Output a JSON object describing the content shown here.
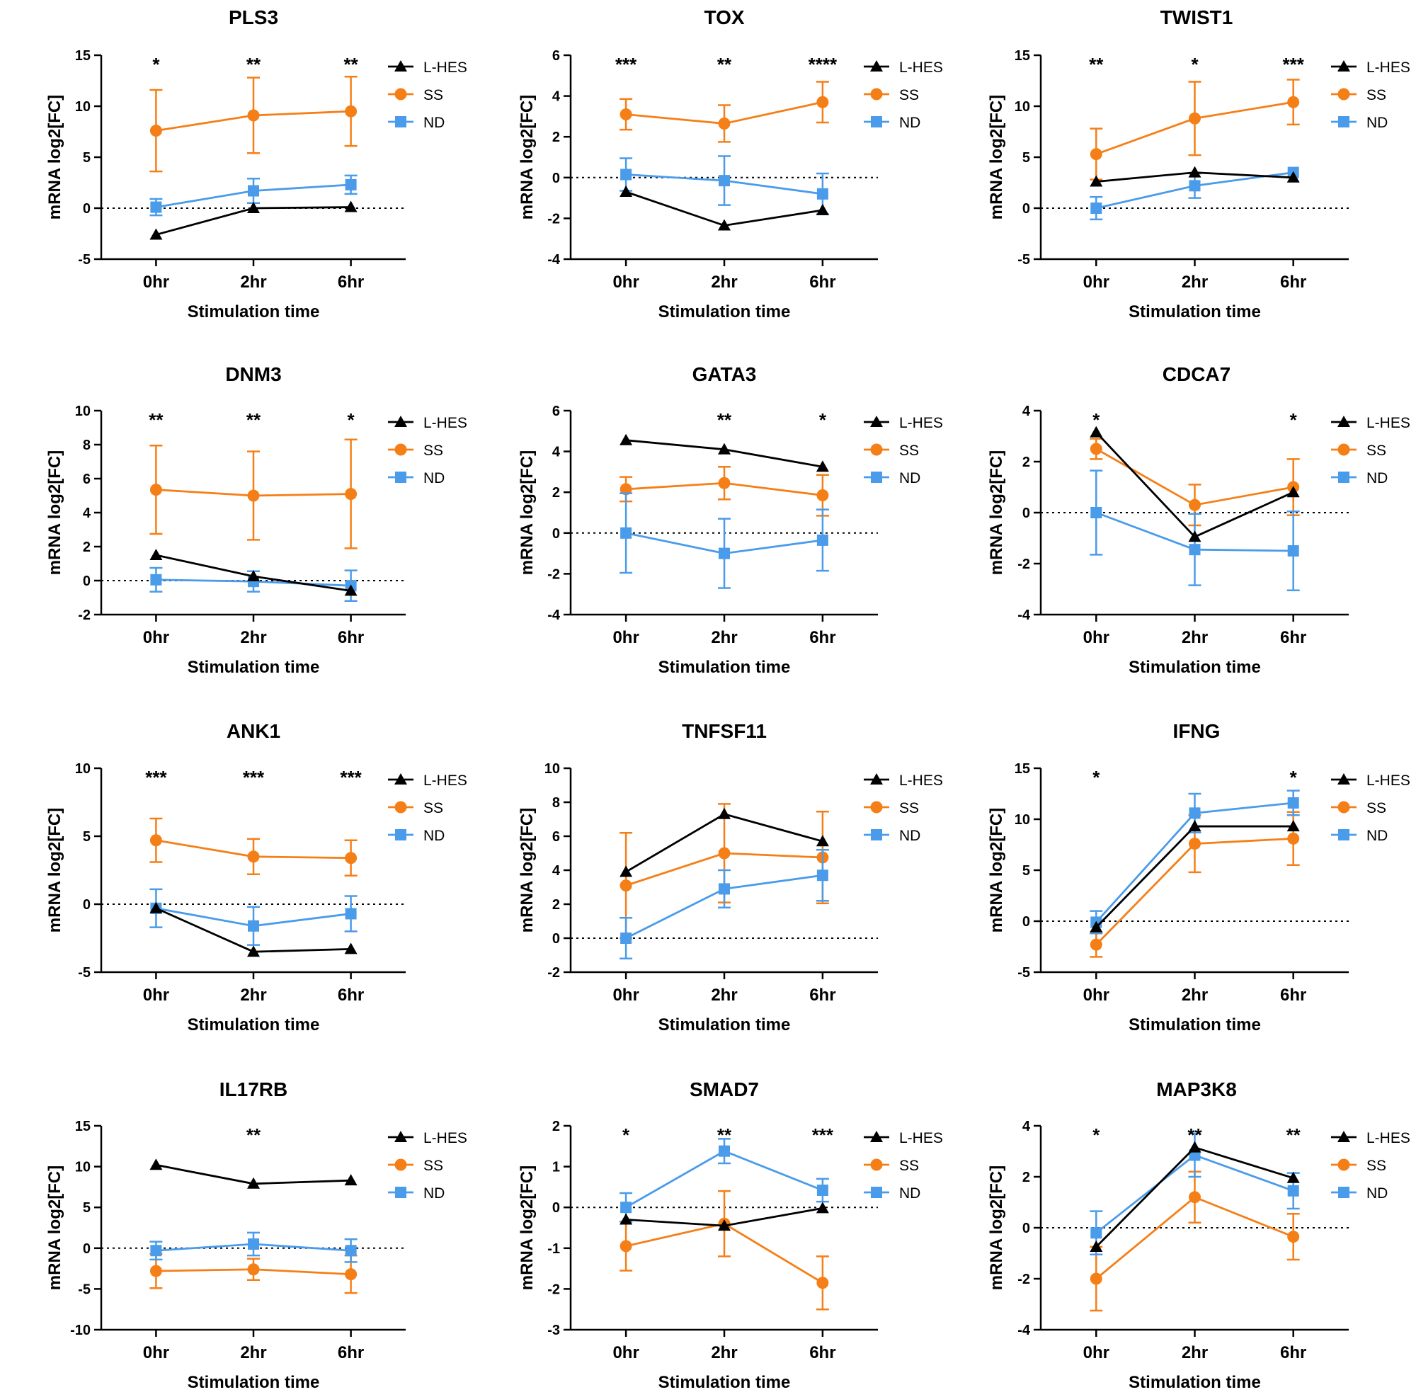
{
  "colors": {
    "L-HES": "#000000",
    "SS": "#F57F17",
    "ND": "#4A9BEA"
  },
  "chart_data": [
    {
      "type": "line",
      "title": "PLS3",
      "xlabel": "Stimulation time",
      "ylabel": "mRNA log2[FC]",
      "categories": [
        "0hr",
        "2hr",
        "6hr"
      ],
      "ylim": [
        -5,
        15
      ],
      "yticks": [
        -5,
        0,
        5,
        10,
        15
      ],
      "significance": [
        "*",
        "**",
        "**"
      ],
      "legend_position": "top-right",
      "series": [
        {
          "name": "L-HES",
          "marker": "triangle",
          "values": [
            -2.6,
            0.0,
            0.1
          ],
          "errors": [
            0,
            0,
            0
          ]
        },
        {
          "name": "SS",
          "marker": "circle",
          "values": [
            7.6,
            9.1,
            9.5
          ],
          "errors": [
            4.0,
            3.7,
            3.4
          ]
        },
        {
          "name": "ND",
          "marker": "square",
          "values": [
            0.1,
            1.7,
            2.3
          ],
          "errors": [
            0.8,
            1.2,
            0.9
          ]
        }
      ]
    },
    {
      "type": "line",
      "title": "TOX",
      "xlabel": "Stimulation time",
      "ylabel": "mRNA log2[FC]",
      "categories": [
        "0hr",
        "2hr",
        "6hr"
      ],
      "ylim": [
        -4,
        6
      ],
      "yticks": [
        -4,
        -2,
        0,
        2,
        4,
        6
      ],
      "significance": [
        "***",
        "**",
        "****"
      ],
      "legend_position": "top-right",
      "series": [
        {
          "name": "L-HES",
          "marker": "triangle",
          "values": [
            -0.7,
            -2.35,
            -1.6
          ],
          "errors": [
            0,
            0,
            0
          ]
        },
        {
          "name": "SS",
          "marker": "circle",
          "values": [
            3.1,
            2.65,
            3.7
          ],
          "errors": [
            0.75,
            0.9,
            1.0
          ]
        },
        {
          "name": "ND",
          "marker": "square",
          "values": [
            0.15,
            -0.15,
            -0.8
          ],
          "errors": [
            0.8,
            1.2,
            1.0
          ]
        }
      ]
    },
    {
      "type": "line",
      "title": "TWIST1",
      "xlabel": "Stimulation time",
      "ylabel": "mRNA log2[FC]",
      "categories": [
        "0hr",
        "2hr",
        "6hr"
      ],
      "ylim": [
        -5,
        15
      ],
      "yticks": [
        -5,
        0,
        5,
        10,
        15
      ],
      "significance": [
        "**",
        "*",
        "***"
      ],
      "legend_position": "top-right",
      "series": [
        {
          "name": "L-HES",
          "marker": "triangle",
          "values": [
            2.6,
            3.5,
            3.0
          ],
          "errors": [
            0,
            0,
            0
          ]
        },
        {
          "name": "SS",
          "marker": "circle",
          "values": [
            5.3,
            8.8,
            10.4
          ],
          "errors": [
            2.5,
            3.6,
            2.2
          ]
        },
        {
          "name": "ND",
          "marker": "square",
          "values": [
            0.0,
            2.2,
            3.5
          ],
          "errors": [
            1.1,
            1.2,
            0
          ]
        }
      ]
    },
    {
      "type": "line",
      "title": "DNM3",
      "xlabel": "Stimulation time",
      "ylabel": "mRNA log2[FC]",
      "categories": [
        "0hr",
        "2hr",
        "6hr"
      ],
      "ylim": [
        -2,
        10
      ],
      "yticks": [
        -2,
        0,
        2,
        4,
        6,
        8,
        10
      ],
      "significance": [
        "**",
        "**",
        "*"
      ],
      "legend_position": "top-right",
      "series": [
        {
          "name": "L-HES",
          "marker": "triangle",
          "values": [
            1.5,
            0.25,
            -0.6
          ],
          "errors": [
            0,
            0,
            0
          ]
        },
        {
          "name": "SS",
          "marker": "circle",
          "values": [
            5.35,
            5.0,
            5.1
          ],
          "errors": [
            2.6,
            2.6,
            3.2
          ]
        },
        {
          "name": "ND",
          "marker": "square",
          "values": [
            0.05,
            -0.05,
            -0.3
          ],
          "errors": [
            0.7,
            0.6,
            0.9
          ]
        }
      ]
    },
    {
      "type": "line",
      "title": "GATA3",
      "xlabel": "Stimulation time",
      "ylabel": "mRNA log2[FC]",
      "categories": [
        "0hr",
        "2hr",
        "6hr"
      ],
      "ylim": [
        -4,
        6
      ],
      "yticks": [
        -4,
        -2,
        0,
        2,
        4,
        6
      ],
      "significance": [
        "",
        "**",
        "*"
      ],
      "legend_position": "top-right",
      "series": [
        {
          "name": "L-HES",
          "marker": "triangle",
          "values": [
            4.55,
            4.1,
            3.25
          ],
          "errors": [
            0,
            0,
            0
          ]
        },
        {
          "name": "SS",
          "marker": "circle",
          "values": [
            2.15,
            2.45,
            1.85
          ],
          "errors": [
            0.6,
            0.8,
            1.0
          ]
        },
        {
          "name": "ND",
          "marker": "square",
          "values": [
            0.0,
            -1.0,
            -0.35
          ],
          "errors": [
            1.95,
            1.7,
            1.5
          ]
        }
      ]
    },
    {
      "type": "line",
      "title": "CDCA7",
      "xlabel": "Stimulation time",
      "ylabel": "mRNA log2[FC]",
      "categories": [
        "0hr",
        "2hr",
        "6hr"
      ],
      "ylim": [
        -4,
        4
      ],
      "yticks": [
        -4,
        -2,
        0,
        2,
        4
      ],
      "significance": [
        "*",
        "",
        "*"
      ],
      "legend_position": "top-right",
      "series": [
        {
          "name": "L-HES",
          "marker": "triangle",
          "values": [
            3.15,
            -0.95,
            0.8
          ],
          "errors": [
            0,
            0,
            0
          ]
        },
        {
          "name": "SS",
          "marker": "circle",
          "values": [
            2.5,
            0.3,
            1.0
          ],
          "errors": [
            0.4,
            0.8,
            1.1
          ]
        },
        {
          "name": "ND",
          "marker": "square",
          "values": [
            0.0,
            -1.45,
            -1.5
          ],
          "errors": [
            1.65,
            1.4,
            1.55
          ]
        }
      ]
    },
    {
      "type": "line",
      "title": "ANK1",
      "xlabel": "Stimulation time",
      "ylabel": "mRNA log2[FC]",
      "categories": [
        "0hr",
        "2hr",
        "6hr"
      ],
      "ylim": [
        -5,
        10
      ],
      "yticks": [
        -5,
        0,
        5,
        10
      ],
      "significance": [
        "***",
        "***",
        "***"
      ],
      "legend_position": "top-right",
      "series": [
        {
          "name": "L-HES",
          "marker": "triangle",
          "values": [
            -0.3,
            -3.5,
            -3.3
          ],
          "errors": [
            0,
            0,
            0
          ]
        },
        {
          "name": "SS",
          "marker": "circle",
          "values": [
            4.7,
            3.5,
            3.4
          ],
          "errors": [
            1.6,
            1.3,
            1.3
          ]
        },
        {
          "name": "ND",
          "marker": "square",
          "values": [
            -0.3,
            -1.6,
            -0.7
          ],
          "errors": [
            1.4,
            1.4,
            1.3
          ]
        }
      ]
    },
    {
      "type": "line",
      "title": "TNFSF11",
      "xlabel": "Stimulation time",
      "ylabel": "mRNA log2[FC]",
      "categories": [
        "0hr",
        "2hr",
        "6hr"
      ],
      "ylim": [
        -2,
        10
      ],
      "yticks": [
        -2,
        0,
        2,
        4,
        6,
        8,
        10
      ],
      "significance": [
        "",
        "",
        ""
      ],
      "legend_position": "top-right",
      "series": [
        {
          "name": "L-HES",
          "marker": "triangle",
          "values": [
            3.9,
            7.3,
            5.7
          ],
          "errors": [
            0,
            0,
            0
          ]
        },
        {
          "name": "SS",
          "marker": "circle",
          "values": [
            3.1,
            5.0,
            4.75
          ],
          "errors": [
            3.1,
            2.9,
            2.7
          ]
        },
        {
          "name": "ND",
          "marker": "square",
          "values": [
            0.0,
            2.9,
            3.7
          ],
          "errors": [
            1.2,
            1.1,
            1.5
          ]
        }
      ]
    },
    {
      "type": "line",
      "title": "IFNG",
      "xlabel": "Stimulation time",
      "ylabel": "mRNA log2[FC]",
      "categories": [
        "0hr",
        "2hr",
        "6hr"
      ],
      "ylim": [
        -5,
        15
      ],
      "yticks": [
        -5,
        0,
        5,
        10,
        15
      ],
      "significance": [
        "*",
        "",
        "*"
      ],
      "legend_position": "top-right",
      "series": [
        {
          "name": "L-HES",
          "marker": "triangle",
          "values": [
            -0.6,
            9.3,
            9.3
          ],
          "errors": [
            0,
            0,
            0
          ]
        },
        {
          "name": "SS",
          "marker": "circle",
          "values": [
            -2.3,
            7.6,
            8.1
          ],
          "errors": [
            1.2,
            2.8,
            2.6
          ]
        },
        {
          "name": "ND",
          "marker": "square",
          "values": [
            -0.1,
            10.6,
            11.6
          ],
          "errors": [
            1.1,
            1.9,
            1.2
          ]
        }
      ]
    },
    {
      "type": "line",
      "title": "IL17RB",
      "xlabel": "Stimulation time",
      "ylabel": "mRNA log2[FC]",
      "categories": [
        "0hr",
        "2hr",
        "6hr"
      ],
      "ylim": [
        -10,
        15
      ],
      "yticks": [
        -10,
        -5,
        0,
        5,
        10,
        15
      ],
      "significance": [
        "",
        "**",
        ""
      ],
      "legend_position": "top-right",
      "series": [
        {
          "name": "L-HES",
          "marker": "triangle",
          "values": [
            10.2,
            7.9,
            8.3
          ],
          "errors": [
            0,
            0,
            0
          ]
        },
        {
          "name": "SS",
          "marker": "circle",
          "values": [
            -2.8,
            -2.6,
            -3.2
          ],
          "errors": [
            2.1,
            1.3,
            2.3
          ]
        },
        {
          "name": "ND",
          "marker": "square",
          "values": [
            -0.3,
            0.5,
            -0.3
          ],
          "errors": [
            1.1,
            1.4,
            1.4
          ]
        }
      ]
    },
    {
      "type": "line",
      "title": "SMAD7",
      "xlabel": "Stimulation time",
      "ylabel": "mRNA log2[FC]",
      "categories": [
        "0hr",
        "2hr",
        "6hr"
      ],
      "ylim": [
        -3,
        2
      ],
      "yticks": [
        -3,
        -2,
        -1,
        0,
        1,
        2
      ],
      "significance": [
        "*",
        "**",
        "***"
      ],
      "legend_position": "top-right",
      "series": [
        {
          "name": "L-HES",
          "marker": "triangle",
          "values": [
            -0.3,
            -0.45,
            -0.02
          ],
          "errors": [
            0,
            0,
            0
          ]
        },
        {
          "name": "SS",
          "marker": "circle",
          "values": [
            -0.95,
            -0.4,
            -1.85
          ],
          "errors": [
            0.6,
            0.8,
            0.65
          ]
        },
        {
          "name": "ND",
          "marker": "square",
          "values": [
            0.0,
            1.38,
            0.42
          ],
          "errors": [
            0.35,
            0.3,
            0.28
          ]
        }
      ]
    },
    {
      "type": "line",
      "title": "MAP3K8",
      "xlabel": "Stimulation time",
      "ylabel": "mRNA log2[FC]",
      "categories": [
        "0hr",
        "2hr",
        "6hr"
      ],
      "ylim": [
        -4,
        4
      ],
      "yticks": [
        -4,
        -2,
        0,
        2,
        4
      ],
      "significance": [
        "*",
        "**",
        "**"
      ],
      "legend_position": "top-right",
      "series": [
        {
          "name": "L-HES",
          "marker": "triangle",
          "values": [
            -0.75,
            3.15,
            1.95
          ],
          "errors": [
            0,
            0,
            0
          ]
        },
        {
          "name": "SS",
          "marker": "circle",
          "values": [
            -2.0,
            1.2,
            -0.35
          ],
          "errors": [
            1.25,
            1.0,
            0.9
          ]
        },
        {
          "name": "ND",
          "marker": "square",
          "values": [
            -0.2,
            2.85,
            1.45
          ],
          "errors": [
            0.85,
            0.85,
            0.7
          ]
        }
      ]
    }
  ]
}
